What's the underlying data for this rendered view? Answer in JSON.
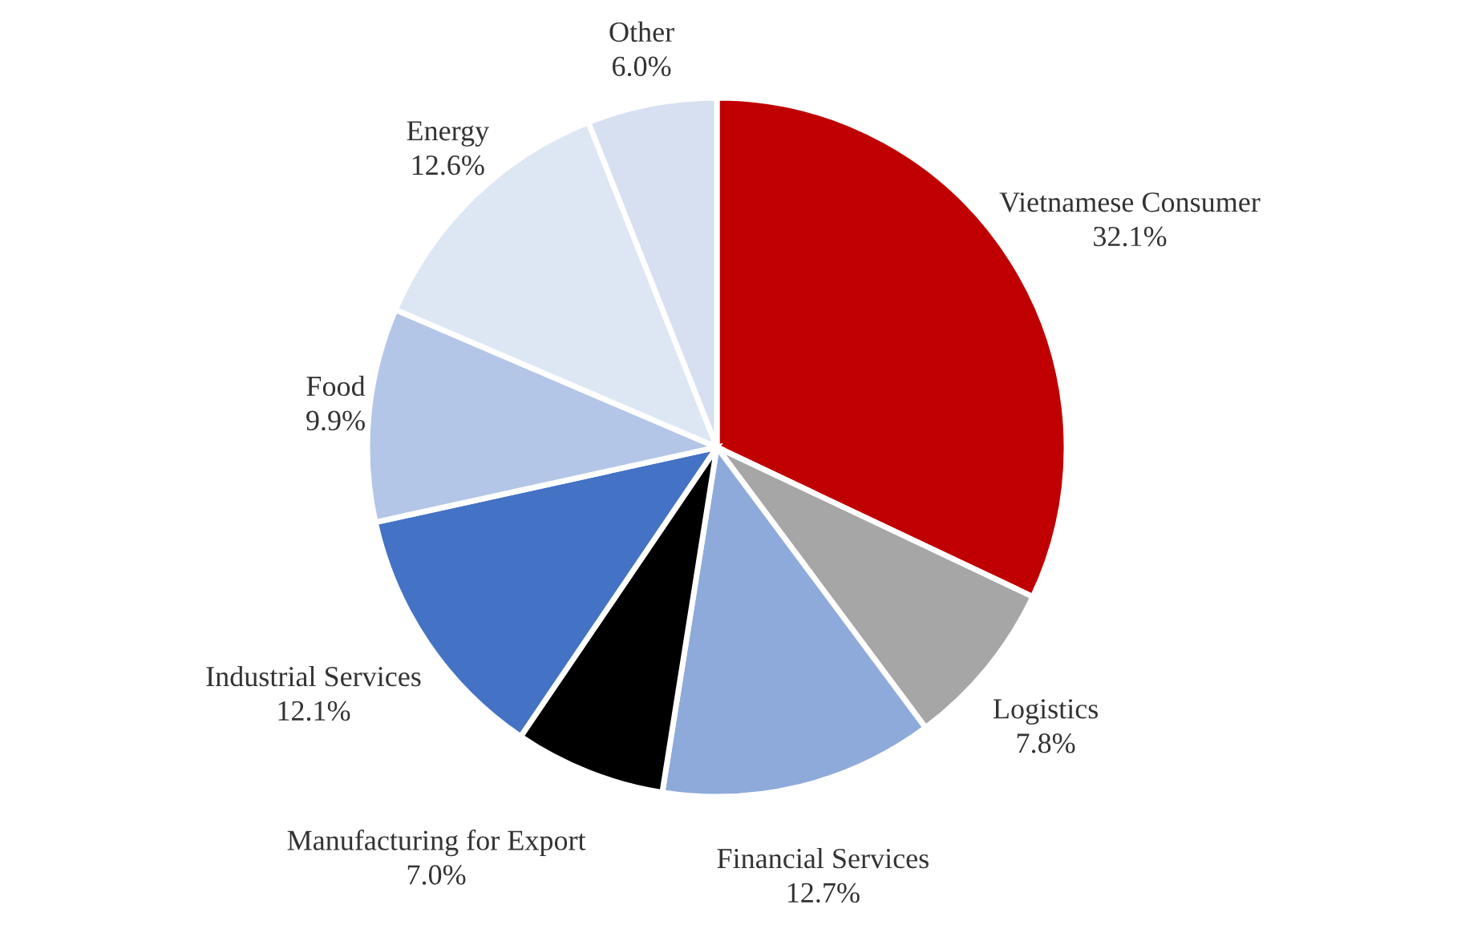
{
  "chart_data": {
    "type": "pie",
    "categories": [
      "Vietnamese Consumer",
      "Logistics",
      "Financial Services",
      "Manufacturing for Export",
      "Industrial Services",
      "Food",
      "Energy",
      "Other"
    ],
    "values": [
      32.1,
      7.8,
      12.7,
      7.0,
      12.1,
      9.9,
      12.6,
      6.0
    ],
    "value_labels": [
      "32.1%",
      "7.8%",
      "12.7%",
      "7.0%",
      "12.1%",
      "9.9%",
      "12.6%",
      "6.0%"
    ],
    "colors": [
      "#c00000",
      "#a6a6a6",
      "#8eaadb",
      "#000000",
      "#4472c4",
      "#b4c6e7",
      "#dde7f4",
      "#d6e0f0"
    ]
  }
}
